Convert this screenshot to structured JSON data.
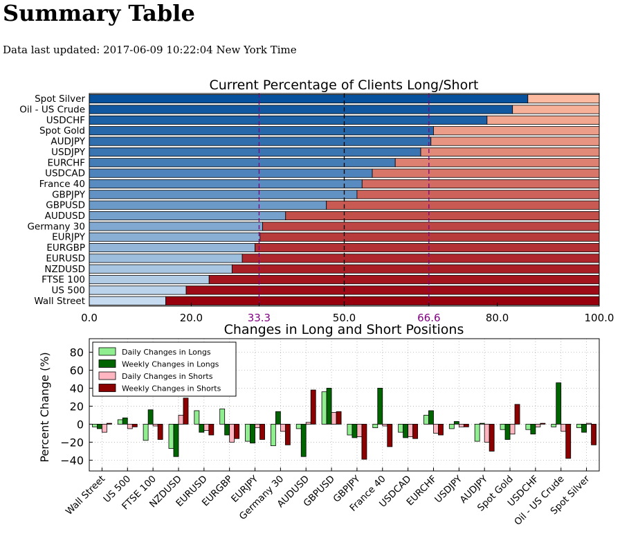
{
  "page": {
    "title": "Summary Table",
    "updated_text": "Data last updated: 2017-06-09 10:22:04 New York Time"
  },
  "colors": {
    "long_dark": "#08519c",
    "long_light": "#c6dbef",
    "short_light": "#fcbba1",
    "short_dark": "#99000d",
    "marker_purple": "#800080",
    "daily_longs": "#90ee90",
    "weekly_longs": "#006400",
    "daily_shorts": "#ffb6c1",
    "weekly_shorts": "#8b0000"
  },
  "chart_data": [
    {
      "type": "bar",
      "orientation": "horizontal",
      "stacked": true,
      "title": "Current Percentage of Clients Long/Short",
      "categories": [
        "Spot Silver",
        "Oil - US Crude",
        "USDCHF",
        "Spot Gold",
        "AUDJPY",
        "USDJPY",
        "EURCHF",
        "USDCAD",
        "France 40",
        "GBPJPY",
        "GBPUSD",
        "AUDUSD",
        "Germany 30",
        "EURJPY",
        "EURGBP",
        "EURUSD",
        "NZDUSD",
        "FTSE 100",
        "US 500",
        "Wall Street"
      ],
      "series": [
        {
          "values": [
            86.0,
            83.0,
            78.0,
            67.5,
            67.0,
            65.0,
            60.0,
            55.5,
            53.5,
            52.5,
            46.5,
            38.5,
            34.0,
            33.5,
            32.5,
            30.0,
            28.0,
            23.5,
            19.0,
            15.0
          ]
        },
        {
          "values": [
            14.0,
            17.0,
            22.0,
            32.5,
            33.0,
            35.0,
            40.0,
            44.5,
            46.5,
            47.5,
            53.5,
            61.5,
            66.0,
            66.5,
            67.5,
            70.0,
            72.0,
            76.5,
            81.0,
            85.0
          ]
        }
      ],
      "xlim": [
        0,
        100
      ],
      "xticks": [
        "0.0",
        "20.0",
        "33.3",
        "50.0",
        "66.6",
        "80.0",
        "100.0"
      ],
      "reference_lines": [
        {
          "value": 33.3,
          "style": "dashed",
          "color": "purple"
        },
        {
          "value": 50.0,
          "style": "dashed",
          "color": "black"
        },
        {
          "value": 66.6,
          "style": "dashed",
          "color": "purple"
        }
      ]
    },
    {
      "type": "bar",
      "title": "Changes in Long and Short Positions",
      "ylabel": "Percent Change (%)",
      "xlabel": "",
      "ylim": [
        -52,
        95
      ],
      "yticks": [
        "80",
        "60",
        "40",
        "20",
        "0",
        "−20",
        "−40"
      ],
      "grid": true,
      "legend_position": "top-left",
      "categories": [
        "Wall Street",
        "US 500",
        "FTSE 100",
        "NZDUSD",
        "EURUSD",
        "EURGBP",
        "EURJPY",
        "Germany 30",
        "AUDUSD",
        "GBPUSD",
        "GBPJPY",
        "France 40",
        "USDCAD",
        "EURCHF",
        "USDJPY",
        "AUDJPY",
        "Spot Gold",
        "USDCHF",
        "Oil - US Crude",
        "Spot Silver"
      ],
      "series": [
        {
          "name": "Daily Changes in Longs",
          "values": [
            -3,
            5,
            -18,
            -27,
            15,
            17,
            -19,
            -24,
            -5,
            36,
            -12,
            -4,
            -9,
            10,
            -5,
            -19,
            -6,
            -6,
            -3,
            -4
          ]
        },
        {
          "name": "Weekly Changes in Longs",
          "values": [
            -5,
            7,
            16,
            -36,
            -9,
            -12,
            -21,
            14,
            -36,
            40,
            -15,
            40,
            -15,
            15,
            3,
            1,
            -17,
            -11,
            46,
            -9
          ]
        },
        {
          "name": "Daily Changes in Shorts",
          "values": [
            -9,
            -5,
            -2,
            10,
            -7,
            -20,
            -4,
            -8,
            2,
            13,
            -14,
            -2,
            -14,
            -10,
            -3,
            -20,
            -11,
            -3,
            -8,
            1
          ]
        },
        {
          "name": "Weekly Changes in Shorts",
          "values": [
            1,
            -3,
            -17,
            29,
            -12,
            -16,
            -17,
            -23,
            38,
            14,
            -39,
            -25,
            -16,
            -12,
            -3,
            -30,
            22,
            1,
            -38,
            -23
          ]
        }
      ]
    }
  ]
}
